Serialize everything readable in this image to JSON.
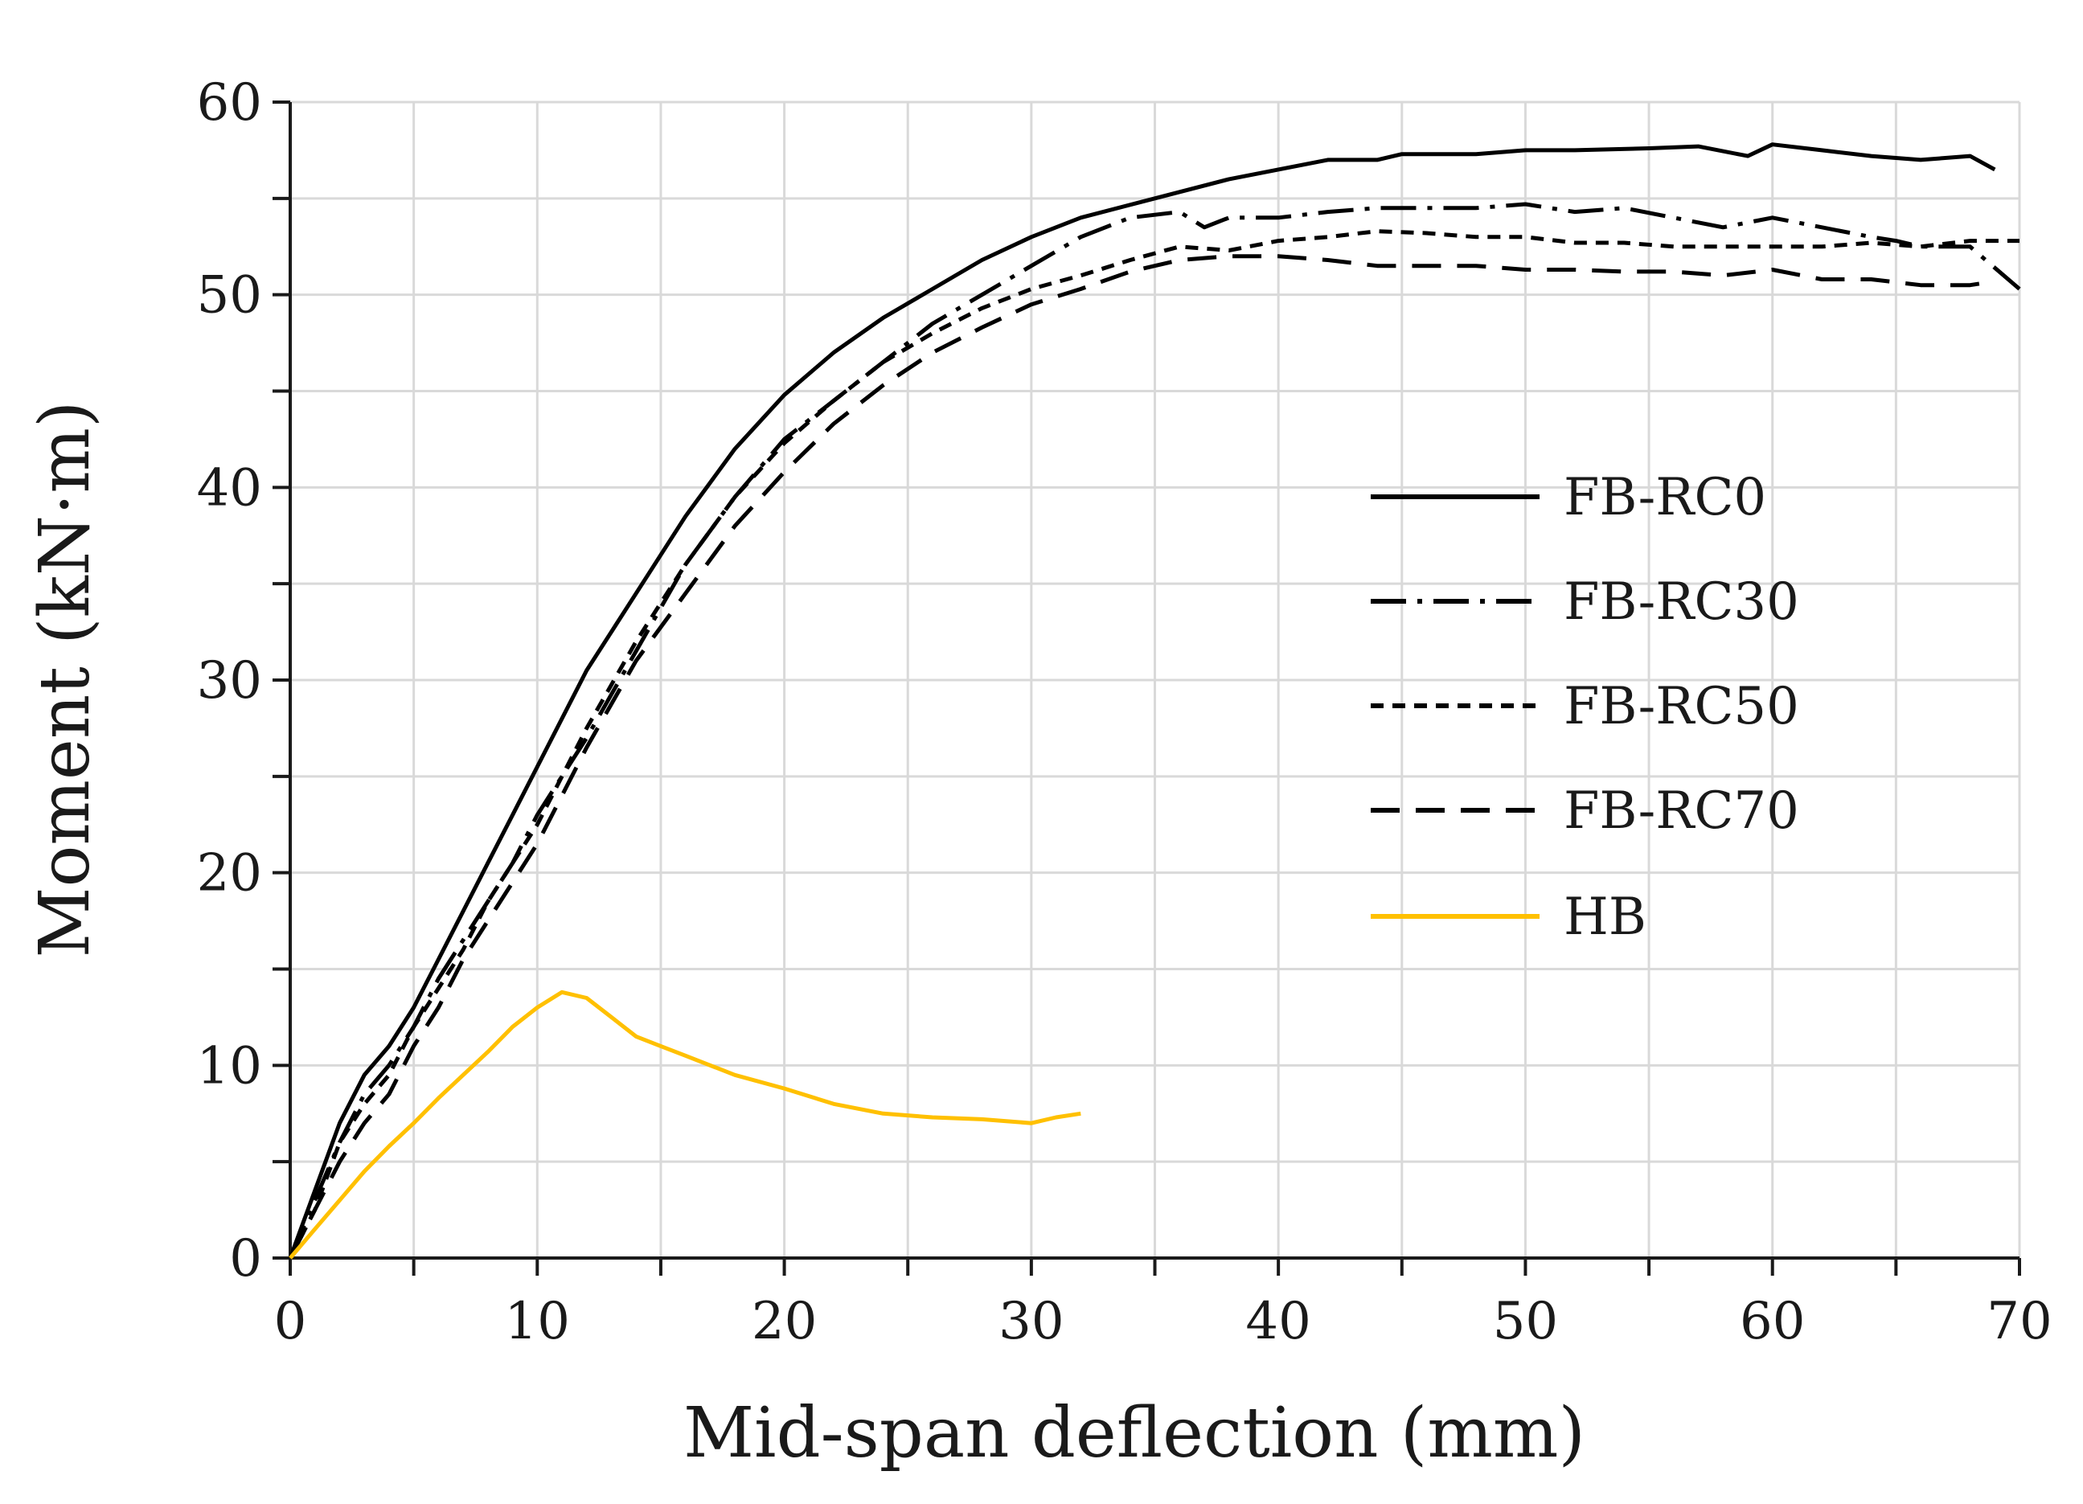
{
  "chart_data": {
    "type": "line",
    "title": "",
    "xlabel": "Mid-span deflection (mm)",
    "ylabel": "Moment (kN·m)",
    "xlim": [
      0,
      70
    ],
    "ylim": [
      0,
      60
    ],
    "x_major_ticks": [
      0,
      10,
      20,
      30,
      40,
      50,
      60,
      70
    ],
    "x_tick_labels": [
      "0",
      "10",
      "20",
      "30",
      "40",
      "50",
      "60",
      "70"
    ],
    "y_major_ticks": [
      0,
      10,
      20,
      30,
      40,
      50,
      60
    ],
    "y_tick_labels": [
      "0",
      "10",
      "20",
      "30",
      "40",
      "50",
      "60"
    ],
    "x_minor_step": 5,
    "y_minor_step": 5,
    "grid": true,
    "legend_position": "right-center",
    "series": [
      {
        "name": "FB-RC0",
        "color": "#000000",
        "dash": "solid",
        "points": [
          [
            0,
            0
          ],
          [
            1,
            3.5
          ],
          [
            2,
            7
          ],
          [
            3,
            9.5
          ],
          [
            4,
            11
          ],
          [
            5,
            13
          ],
          [
            6,
            15.5
          ],
          [
            7,
            18
          ],
          [
            8,
            20.5
          ],
          [
            9,
            23
          ],
          [
            10,
            25.5
          ],
          [
            12,
            30.5
          ],
          [
            14,
            34.5
          ],
          [
            16,
            38.5
          ],
          [
            18,
            42
          ],
          [
            20,
            44.8
          ],
          [
            22,
            47
          ],
          [
            24,
            48.8
          ],
          [
            26,
            50.3
          ],
          [
            28,
            51.8
          ],
          [
            30,
            53
          ],
          [
            32,
            54
          ],
          [
            35,
            55
          ],
          [
            38,
            56
          ],
          [
            40,
            56.5
          ],
          [
            42,
            57
          ],
          [
            44,
            57
          ],
          [
            45,
            57.3
          ],
          [
            48,
            57.3
          ],
          [
            50,
            57.5
          ],
          [
            52,
            57.5
          ],
          [
            55,
            57.6
          ],
          [
            57,
            57.7
          ],
          [
            59,
            57.2
          ],
          [
            60,
            57.8
          ],
          [
            62,
            57.5
          ],
          [
            64,
            57.2
          ],
          [
            66,
            57
          ],
          [
            68,
            57.2
          ],
          [
            69,
            56.5
          ]
        ]
      },
      {
        "name": "FB-RC30",
        "color": "#000000",
        "dash": "dashdot",
        "points": [
          [
            0,
            0
          ],
          [
            1,
            3
          ],
          [
            2,
            6
          ],
          [
            3,
            8.5
          ],
          [
            4,
            10
          ],
          [
            5,
            12
          ],
          [
            6,
            14.5
          ],
          [
            7,
            16.5
          ],
          [
            8,
            18.5
          ],
          [
            9,
            20.5
          ],
          [
            10,
            23
          ],
          [
            12,
            27
          ],
          [
            14,
            31.5
          ],
          [
            16,
            36
          ],
          [
            18,
            39.5
          ],
          [
            20,
            42.5
          ],
          [
            22,
            44.5
          ],
          [
            24,
            46.5
          ],
          [
            26,
            48.5
          ],
          [
            28,
            50
          ],
          [
            30,
            51.5
          ],
          [
            32,
            53
          ],
          [
            34,
            54
          ],
          [
            36,
            54.3
          ],
          [
            37,
            53.5
          ],
          [
            38,
            54
          ],
          [
            40,
            54
          ],
          [
            42,
            54.3
          ],
          [
            44,
            54.5
          ],
          [
            46,
            54.5
          ],
          [
            48,
            54.5
          ],
          [
            50,
            54.7
          ],
          [
            52,
            54.3
          ],
          [
            54,
            54.5
          ],
          [
            56,
            54
          ],
          [
            58,
            53.5
          ],
          [
            60,
            54
          ],
          [
            62,
            53.5
          ],
          [
            64,
            53
          ],
          [
            65,
            52.8
          ],
          [
            66,
            52.5
          ],
          [
            68,
            52.5
          ],
          [
            70,
            50.3
          ]
        ]
      },
      {
        "name": "FB-RC50",
        "color": "#000000",
        "dash": "shortdash",
        "points": [
          [
            0,
            0
          ],
          [
            1,
            2.5
          ],
          [
            2,
            6
          ],
          [
            3,
            8
          ],
          [
            4,
            9.5
          ],
          [
            5,
            12
          ],
          [
            6,
            14
          ],
          [
            7,
            16
          ],
          [
            8,
            18.5
          ],
          [
            9,
            20.5
          ],
          [
            10,
            22.5
          ],
          [
            12,
            27.5
          ],
          [
            14,
            32
          ],
          [
            16,
            36
          ],
          [
            18,
            39.5
          ],
          [
            20,
            42.3
          ],
          [
            22,
            44.5
          ],
          [
            24,
            46.5
          ],
          [
            26,
            48
          ],
          [
            28,
            49.3
          ],
          [
            30,
            50.3
          ],
          [
            32,
            51
          ],
          [
            34,
            51.8
          ],
          [
            36,
            52.5
          ],
          [
            38,
            52.3
          ],
          [
            40,
            52.8
          ],
          [
            42,
            53
          ],
          [
            44,
            53.3
          ],
          [
            46,
            53.2
          ],
          [
            48,
            53
          ],
          [
            50,
            53
          ],
          [
            52,
            52.7
          ],
          [
            54,
            52.7
          ],
          [
            56,
            52.5
          ],
          [
            58,
            52.5
          ],
          [
            60,
            52.5
          ],
          [
            62,
            52.5
          ],
          [
            64,
            52.7
          ],
          [
            66,
            52.5
          ],
          [
            68,
            52.8
          ],
          [
            70,
            52.8
          ]
        ]
      },
      {
        "name": "FB-RC70",
        "color": "#000000",
        "dash": "longdash",
        "points": [
          [
            0,
            0
          ],
          [
            1,
            2.5
          ],
          [
            2,
            5
          ],
          [
            3,
            7
          ],
          [
            4,
            8.5
          ],
          [
            5,
            11
          ],
          [
            6,
            13
          ],
          [
            7,
            15.5
          ],
          [
            8,
            17.5
          ],
          [
            9,
            19.5
          ],
          [
            10,
            21.5
          ],
          [
            12,
            26.5
          ],
          [
            14,
            31
          ],
          [
            16,
            34.5
          ],
          [
            18,
            38
          ],
          [
            20,
            40.8
          ],
          [
            22,
            43.3
          ],
          [
            24,
            45.3
          ],
          [
            26,
            47
          ],
          [
            28,
            48.3
          ],
          [
            30,
            49.5
          ],
          [
            32,
            50.3
          ],
          [
            34,
            51.2
          ],
          [
            36,
            51.8
          ],
          [
            38,
            52
          ],
          [
            40,
            52
          ],
          [
            42,
            51.8
          ],
          [
            44,
            51.5
          ],
          [
            46,
            51.5
          ],
          [
            48,
            51.5
          ],
          [
            50,
            51.3
          ],
          [
            52,
            51.3
          ],
          [
            54,
            51.2
          ],
          [
            56,
            51.2
          ],
          [
            58,
            51
          ],
          [
            60,
            51.3
          ],
          [
            62,
            50.8
          ],
          [
            64,
            50.8
          ],
          [
            66,
            50.5
          ],
          [
            68,
            50.5
          ],
          [
            69,
            50.7
          ]
        ]
      },
      {
        "name": "HB",
        "color": "#FFC000",
        "dash": "solid",
        "points": [
          [
            0,
            0
          ],
          [
            1,
            1.5
          ],
          [
            2,
            3
          ],
          [
            3,
            4.5
          ],
          [
            4,
            5.8
          ],
          [
            5,
            7
          ],
          [
            6,
            8.3
          ],
          [
            7,
            9.5
          ],
          [
            8,
            10.7
          ],
          [
            9,
            12
          ],
          [
            10,
            13
          ],
          [
            11,
            13.8
          ],
          [
            12,
            13.5
          ],
          [
            13,
            12.5
          ],
          [
            14,
            11.5
          ],
          [
            15,
            11
          ],
          [
            16,
            10.5
          ],
          [
            18,
            9.5
          ],
          [
            20,
            8.8
          ],
          [
            22,
            8
          ],
          [
            24,
            7.5
          ],
          [
            26,
            7.3
          ],
          [
            28,
            7.2
          ],
          [
            30,
            7
          ],
          [
            31,
            7.3
          ],
          [
            32,
            7.5
          ]
        ]
      }
    ]
  }
}
